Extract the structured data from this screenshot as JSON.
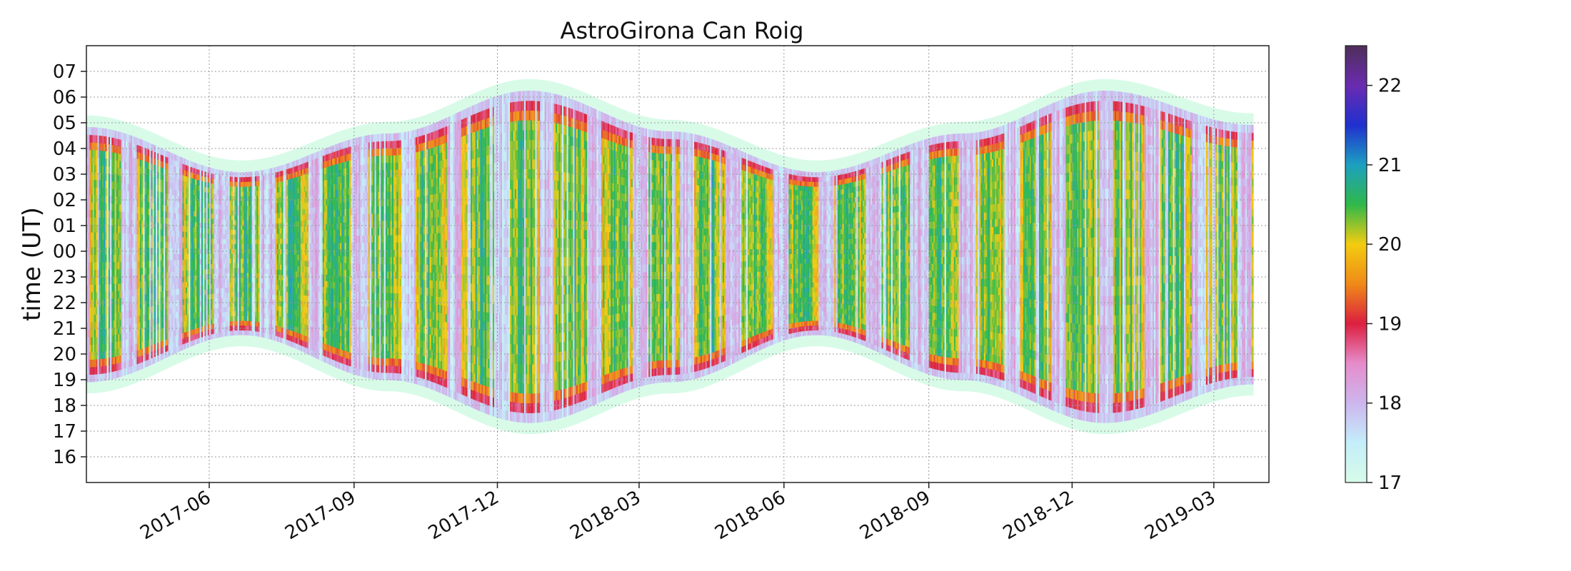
{
  "chart_data": {
    "type": "heatmap",
    "title": "AstroGirona Can Roig",
    "xlabel": "",
    "ylabel": "time (UT)",
    "x_type": "date",
    "xlim": [
      "2017-03-15",
      "2019-04-05"
    ],
    "x_ticks": [
      "2017-06",
      "2017-09",
      "2017-12",
      "2018-03",
      "2018-06",
      "2018-09",
      "2018-12",
      "2019-03"
    ],
    "y_ticks": [
      "16",
      "17",
      "18",
      "19",
      "20",
      "21",
      "22",
      "23",
      "00",
      "01",
      "02",
      "03",
      "04",
      "05",
      "06",
      "07"
    ],
    "y_range_hours": [
      "15:00",
      "08:00"
    ],
    "grid": true,
    "grid_style": "dotted",
    "data_range": [
      "2017-03-15",
      "2019-03-25"
    ],
    "envelope": [
      {
        "date": "2017-03-15",
        "dusk": "18:55",
        "dawn": "04:50"
      },
      {
        "date": "2017-06-21",
        "dusk": "20:45",
        "dawn": "03:05"
      },
      {
        "date": "2017-09-22",
        "dusk": "19:00",
        "dawn": "04:35"
      },
      {
        "date": "2017-12-21",
        "dusk": "17:20",
        "dawn": "06:15"
      },
      {
        "date": "2018-03-20",
        "dusk": "18:55",
        "dawn": "04:40"
      },
      {
        "date": "2018-06-21",
        "dusk": "20:45",
        "dawn": "03:05"
      },
      {
        "date": "2018-09-22",
        "dusk": "19:00",
        "dawn": "04:35"
      },
      {
        "date": "2018-12-21",
        "dusk": "17:20",
        "dawn": "06:15"
      },
      {
        "date": "2019-03-25",
        "dusk": "18:50",
        "dawn": "04:55"
      }
    ],
    "colorbar": {
      "min": 17,
      "max": 22.5,
      "ticks": [
        "17",
        "18",
        "19",
        "20",
        "21",
        "22"
      ],
      "colors": [
        {
          "value": 17.0,
          "color": "#d8fbe8"
        },
        {
          "value": 17.5,
          "color": "#c4eefa"
        },
        {
          "value": 18.0,
          "color": "#cdb6ee"
        },
        {
          "value": 18.5,
          "color": "#e68ccb"
        },
        {
          "value": 19.0,
          "color": "#dc1f3f"
        },
        {
          "value": 19.5,
          "color": "#ef8a18"
        },
        {
          "value": 20.0,
          "color": "#f3cc10"
        },
        {
          "value": 20.5,
          "color": "#2fb84a"
        },
        {
          "value": 21.0,
          "color": "#1da0c0"
        },
        {
          "value": 21.5,
          "color": "#2030cf"
        },
        {
          "value": 22.0,
          "color": "#6a2bb0"
        },
        {
          "value": 22.5,
          "color": "#4e2f5a"
        }
      ]
    }
  }
}
